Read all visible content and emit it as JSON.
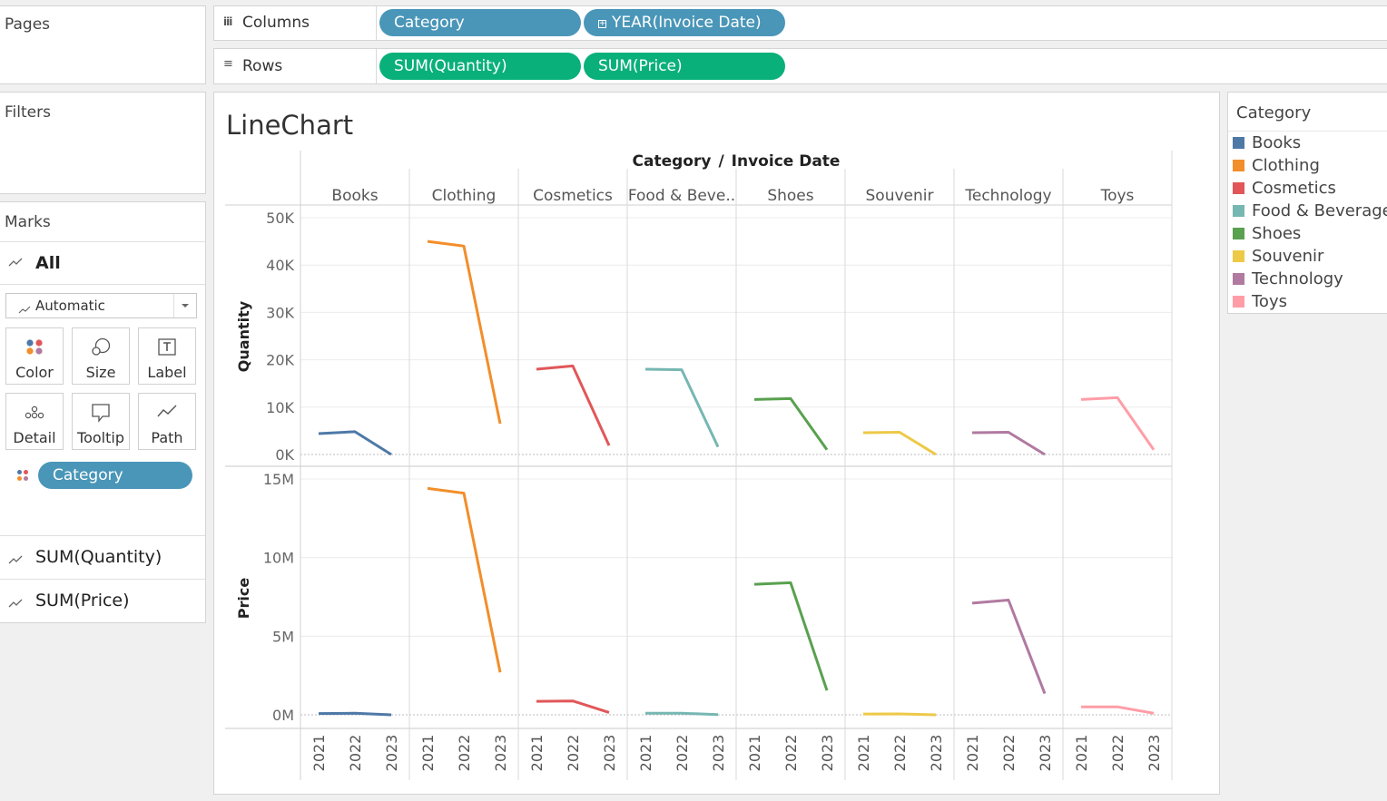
{
  "pages": {
    "title": "Pages"
  },
  "filters": {
    "title": "Filters"
  },
  "shelves": {
    "columns": {
      "label": "Columns",
      "icon": "columns-icon",
      "pills": [
        "Category",
        "YEAR(Invoice Date)"
      ]
    },
    "rows": {
      "label": "Rows",
      "icon": "rows-icon",
      "pills": [
        "SUM(Quantity)",
        "SUM(Price)"
      ]
    }
  },
  "marks": {
    "title": "Marks",
    "all_label": "All",
    "type_dropdown": "Automatic",
    "buttons": [
      "Color",
      "Size",
      "Label",
      "Detail",
      "Tooltip",
      "Path"
    ],
    "color_pill": "Category",
    "measure_cards": [
      "SUM(Quantity)",
      "SUM(Price)"
    ]
  },
  "legend": {
    "title": "Category",
    "items": [
      {
        "label": "Books",
        "color": "#4e79a7"
      },
      {
        "label": "Clothing",
        "color": "#f28e2b"
      },
      {
        "label": "Cosmetics",
        "color": "#e15759"
      },
      {
        "label": "Food & Beverage",
        "color": "#76b7b2"
      },
      {
        "label": "Shoes",
        "color": "#59a14f"
      },
      {
        "label": "Souvenir",
        "color": "#edc948"
      },
      {
        "label": "Technology",
        "color": "#b07aa1"
      },
      {
        "label": "Toys",
        "color": "#ff9da7"
      }
    ]
  },
  "chart_data": {
    "type": "line",
    "title": "LineChart",
    "column_header": "Category",
    "column_header_2": "Invoice Date",
    "header_separator": "/",
    "categories": [
      "Books",
      "Clothing",
      "Cosmetics",
      "Food & Beve..",
      "Shoes",
      "Souvenir",
      "Technology",
      "Toys"
    ],
    "x": [
      "2021",
      "2022",
      "2023"
    ],
    "rows": [
      {
        "ylabel": "Quantity",
        "ylim": [
          0,
          50000
        ],
        "ticks": [
          0,
          10000,
          20000,
          30000,
          40000,
          50000
        ],
        "tick_labels": [
          "0K",
          "10K",
          "20K",
          "30K",
          "40K",
          "50K"
        ],
        "series": [
          {
            "name": "Books",
            "values": [
              4400,
              4800,
              0
            ]
          },
          {
            "name": "Clothing",
            "values": [
              45000,
              44000,
              6500
            ]
          },
          {
            "name": "Cosmetics",
            "values": [
              18000,
              18700,
              1900
            ]
          },
          {
            "name": "Food & Beverage",
            "values": [
              18000,
              17900,
              1600
            ]
          },
          {
            "name": "Shoes",
            "values": [
              11600,
              11800,
              1000
            ]
          },
          {
            "name": "Souvenir",
            "values": [
              4600,
              4700,
              0
            ]
          },
          {
            "name": "Technology",
            "values": [
              4600,
              4700,
              0
            ]
          },
          {
            "name": "Toys",
            "values": [
              11600,
              12000,
              1000
            ]
          }
        ]
      },
      {
        "ylabel": "Price",
        "ylim": [
          0,
          15000000
        ],
        "ticks": [
          0,
          5000000,
          10000000,
          15000000
        ],
        "tick_labels": [
          "0M",
          "5M",
          "10M",
          "15M"
        ],
        "series": [
          {
            "name": "Books",
            "values": [
              80000,
              100000,
              0
            ]
          },
          {
            "name": "Clothing",
            "values": [
              14400000,
              14100000,
              2700000
            ]
          },
          {
            "name": "Cosmetics",
            "values": [
              860000,
              880000,
              150000
            ]
          },
          {
            "name": "Food & Beverage",
            "values": [
              100000,
              100000,
              20000
            ]
          },
          {
            "name": "Shoes",
            "values": [
              8300000,
              8400000,
              1550000
            ]
          },
          {
            "name": "Souvenir",
            "values": [
              50000,
              60000,
              0
            ]
          },
          {
            "name": "Technology",
            "values": [
              7100000,
              7300000,
              1350000
            ]
          },
          {
            "name": "Toys",
            "values": [
              500000,
              510000,
              100000
            ]
          }
        ]
      }
    ],
    "grid": true
  }
}
